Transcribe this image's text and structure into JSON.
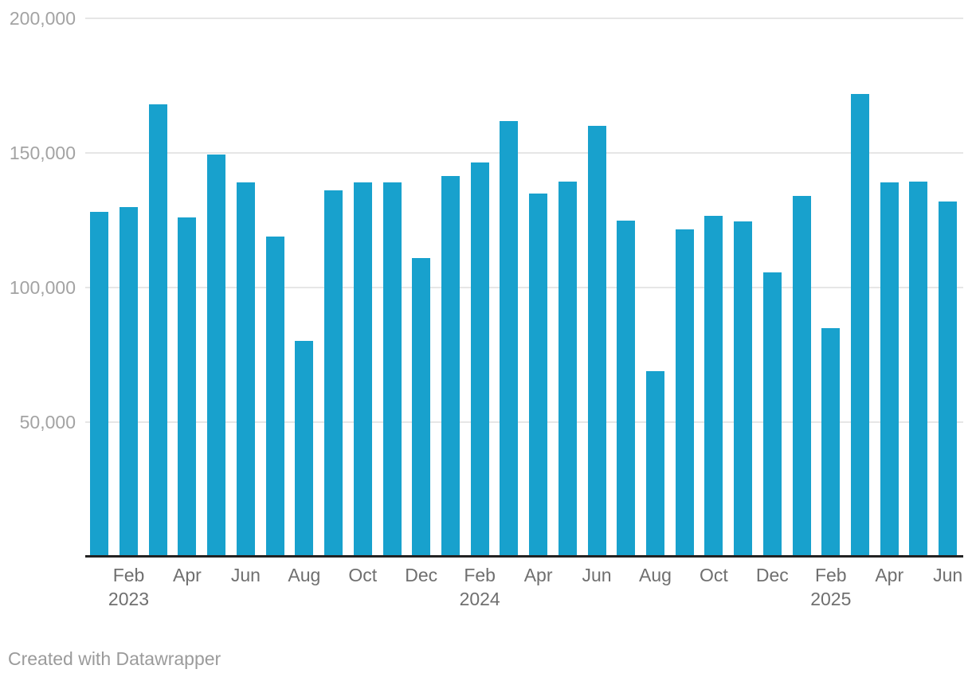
{
  "chart_data": {
    "type": "bar",
    "title": "",
    "xlabel": "",
    "ylabel": "",
    "ylim": [
      0,
      200000
    ],
    "grid": "horizontal",
    "legend": "none",
    "categories": [
      "Jan 2023",
      "Feb 2023",
      "Mar 2023",
      "Apr 2023",
      "May 2023",
      "Jun 2023",
      "Jul 2023",
      "Aug 2023",
      "Sep 2023",
      "Oct 2023",
      "Nov 2023",
      "Dec 2023",
      "Jan 2024",
      "Feb 2024",
      "Mar 2024",
      "Apr 2024",
      "May 2024",
      "Jun 2024",
      "Jul 2024",
      "Aug 2024",
      "Sep 2024",
      "Oct 2024",
      "Nov 2024",
      "Dec 2024",
      "Jan 2025",
      "Feb 2025",
      "Mar 2025",
      "Apr 2025",
      "May 2025",
      "Jun 2025"
    ],
    "values": [
      128000,
      130000,
      168000,
      126000,
      149500,
      139000,
      119000,
      80000,
      136000,
      139000,
      139000,
      111000,
      141500,
      146500,
      162000,
      135000,
      139500,
      160000,
      125000,
      69000,
      121500,
      126500,
      124500,
      105500,
      134000,
      85000,
      172000,
      139000,
      139500,
      132000
    ],
    "yticks": [
      {
        "value": 50000,
        "label": "50,000"
      },
      {
        "value": 100000,
        "label": "100,000"
      },
      {
        "value": 150000,
        "label": "150,000"
      },
      {
        "value": 200000,
        "label": "200,000"
      }
    ],
    "xticks": [
      {
        "index": 1,
        "label": "Feb",
        "year": "2023"
      },
      {
        "index": 3,
        "label": "Apr"
      },
      {
        "index": 5,
        "label": "Jun"
      },
      {
        "index": 7,
        "label": "Aug"
      },
      {
        "index": 9,
        "label": "Oct"
      },
      {
        "index": 11,
        "label": "Dec"
      },
      {
        "index": 13,
        "label": "Feb",
        "year": "2024"
      },
      {
        "index": 15,
        "label": "Apr"
      },
      {
        "index": 17,
        "label": "Jun"
      },
      {
        "index": 19,
        "label": "Aug"
      },
      {
        "index": 21,
        "label": "Oct"
      },
      {
        "index": 23,
        "label": "Dec"
      },
      {
        "index": 25,
        "label": "Feb",
        "year": "2025"
      },
      {
        "index": 27,
        "label": "Apr"
      },
      {
        "index": 29,
        "label": "Jun"
      }
    ]
  },
  "colors": {
    "bar": "#18a1cd",
    "gridline": "#e6e6e6",
    "axis_line": "#222222",
    "y_tick_label": "#a3a3a3",
    "x_tick_label": "#6f6f6f",
    "footer_text": "#9b9b9b",
    "background": "#ffffff"
  },
  "footer": {
    "attribution": "Created with Datawrapper"
  }
}
